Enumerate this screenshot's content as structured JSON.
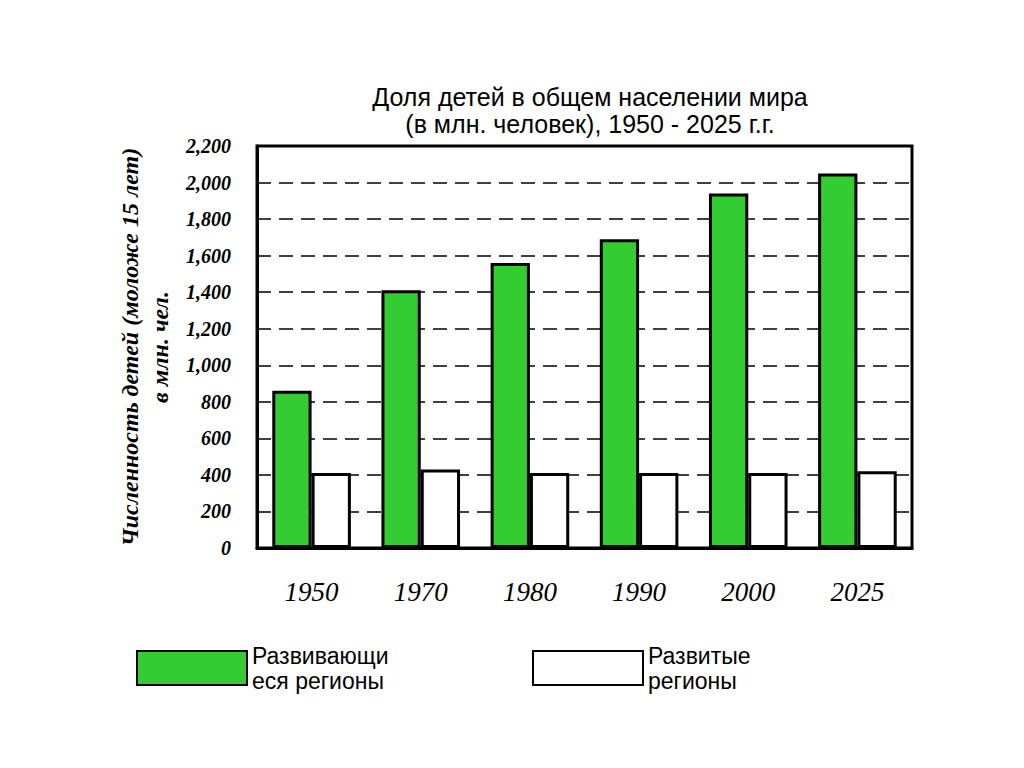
{
  "chart_data": {
    "type": "bar",
    "title": "Доля детей в общем населении мира\n(в млн. человек), 1950 - 2025 г.г.",
    "ylabel": "Численность детей (моложе 15 лет)\nв млн. чел.",
    "categories": [
      "1950",
      "1970",
      "1980",
      "1990",
      "2000",
      "2025"
    ],
    "series": [
      {
        "name": "Развивающиеся регионы",
        "color": "#33cc33",
        "values": [
          860,
          1410,
          1560,
          1690,
          1940,
          2050
        ]
      },
      {
        "name": "Развитые регионы",
        "color": "#ffffff",
        "values": [
          410,
          430,
          410,
          410,
          410,
          420
        ]
      }
    ],
    "ylim": [
      0,
      2200
    ],
    "yticks": [
      0,
      200,
      400,
      600,
      800,
      1000,
      1200,
      1400,
      1600,
      1800,
      2000,
      2200
    ],
    "grid": true,
    "legend": "bottom"
  }
}
